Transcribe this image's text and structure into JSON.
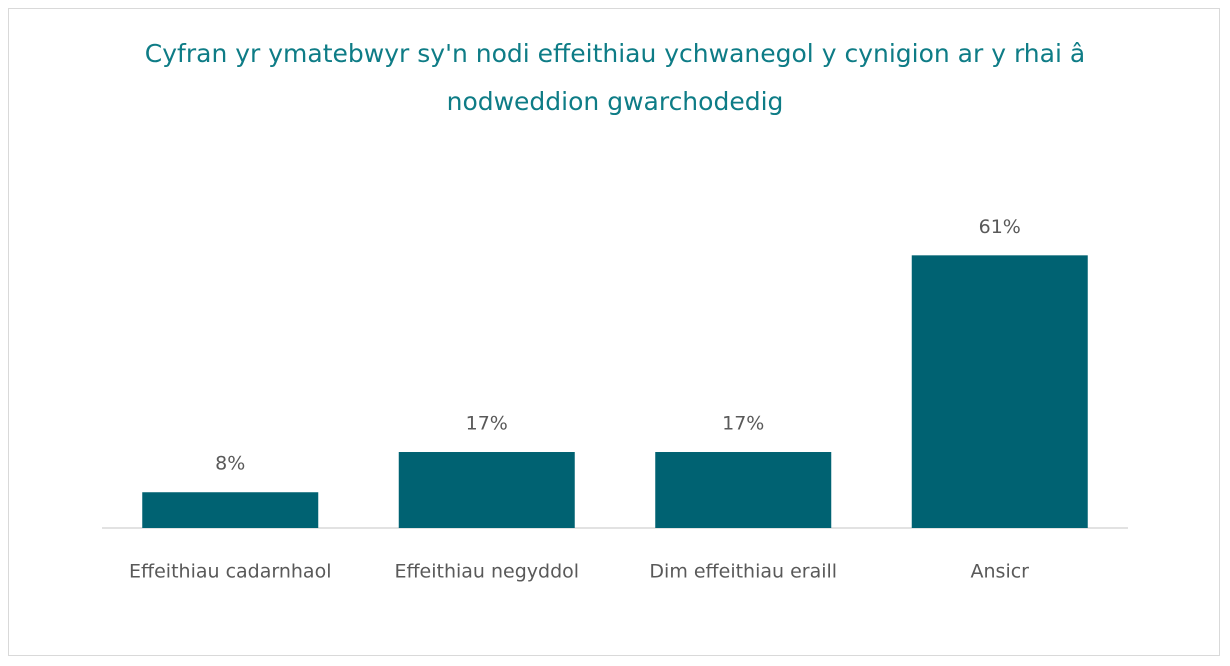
{
  "chart_data": {
    "type": "bar",
    "title": "Cyfran yr ymatebwyr sy'n nodi effeithiau ychwanegol y cynigion ar y rhai â nodweddion gwarchodedig",
    "categories": [
      "Effeithiau cadarnhaol",
      "Effeithiau negyddol",
      "Dim effeithiau eraill",
      "Ansicr"
    ],
    "values": [
      8,
      17,
      17,
      61
    ],
    "value_labels": [
      "8%",
      "17%",
      "17%",
      "61%"
    ],
    "color": "#006272"
  }
}
